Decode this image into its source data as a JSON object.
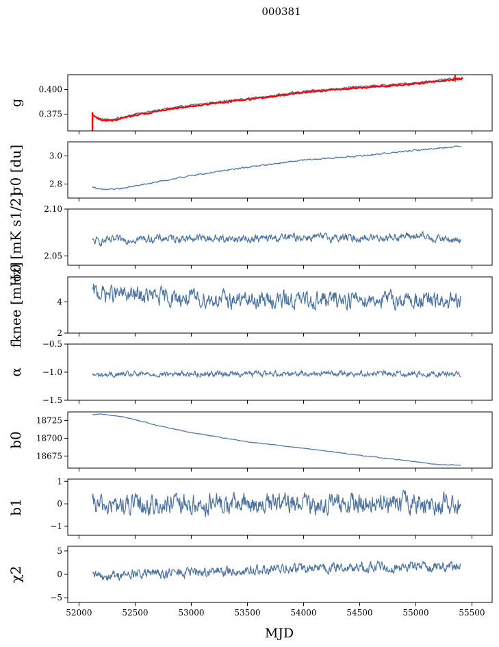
{
  "figure": {
    "title": "000381",
    "xlabel": "MJD"
  },
  "chart_data": [
    {
      "type": "line",
      "id": "g",
      "ylabel": "g",
      "xlim": [
        51900,
        55680
      ],
      "ylim": [
        0.358,
        0.415
      ],
      "yticks": [
        0.375,
        0.4
      ],
      "yticklabels": [
        "0.375",
        "0.400"
      ],
      "x_start": 52120,
      "x_end": 55420,
      "series": [
        {
          "color": "#4c72a0",
          "anchors": [
            [
              52120,
              0.374
            ],
            [
              52200,
              0.37
            ],
            [
              52300,
              0.3695
            ],
            [
              52500,
              0.375
            ],
            [
              52800,
              0.381
            ],
            [
              53200,
              0.387
            ],
            [
              53600,
              0.392
            ],
            [
              54000,
              0.398
            ],
            [
              54400,
              0.402
            ],
            [
              54800,
              0.405
            ],
            [
              55100,
              0.408
            ],
            [
              55420,
              0.412
            ]
          ],
          "noise": 0.0008
        },
        {
          "color": "#ff0000",
          "anchors": [
            [
              52120,
              0.374
            ],
            [
              52200,
              0.369
            ],
            [
              52300,
              0.3685
            ],
            [
              52500,
              0.374
            ],
            [
              52800,
              0.38
            ],
            [
              53200,
              0.386
            ],
            [
              53600,
              0.391
            ],
            [
              54000,
              0.397
            ],
            [
              54400,
              0.401
            ],
            [
              54800,
              0.404
            ],
            [
              55100,
              0.407
            ],
            [
              55420,
              0.411
            ]
          ],
          "noise": 0.0006
        }
      ]
    },
    {
      "type": "line",
      "id": "sigma0_du",
      "ylabel": "σ0 [du]",
      "xlim": [
        51900,
        55680
      ],
      "ylim": [
        2.7,
        3.1
      ],
      "yticks": [
        2.8,
        3.0
      ],
      "yticklabels": [
        "2.8",
        "3.0"
      ],
      "x_start": 52120,
      "x_end": 55400,
      "series": [
        {
          "color": "#4c72a0",
          "anchors": [
            [
              52120,
              2.78
            ],
            [
              52200,
              2.76
            ],
            [
              52350,
              2.765
            ],
            [
              52600,
              2.8
            ],
            [
              53000,
              2.86
            ],
            [
              53500,
              2.92
            ],
            [
              54000,
              2.97
            ],
            [
              54500,
              3.0
            ],
            [
              55000,
              3.04
            ],
            [
              55400,
              3.07
            ]
          ],
          "noise": 0.004
        }
      ]
    },
    {
      "type": "line",
      "id": "sigma0_mk",
      "ylabel": "σ0 [mK s1/2]",
      "xlim": [
        51900,
        55680
      ],
      "ylim": [
        2.04,
        2.1
      ],
      "yticks": [
        2.05,
        2.1
      ],
      "yticklabels": [
        "2.05",
        "2.10"
      ],
      "x_start": 52120,
      "x_end": 55400,
      "series": [
        {
          "color": "#4c72a0",
          "anchors": [
            [
              52120,
              2.065
            ],
            [
              52500,
              2.068
            ],
            [
              53000,
              2.069
            ],
            [
              53500,
              2.068
            ],
            [
              54000,
              2.07
            ],
            [
              54500,
              2.069
            ],
            [
              55000,
              2.071
            ],
            [
              55400,
              2.066
            ]
          ],
          "noise": 0.0035
        }
      ]
    },
    {
      "type": "line",
      "id": "fknee",
      "ylabel": "fknee [mHz]",
      "xlim": [
        51900,
        55680
      ],
      "ylim": [
        2,
        5.6
      ],
      "yticks": [
        2,
        4
      ],
      "yticklabels": [
        "2",
        "4"
      ],
      "x_start": 52120,
      "x_end": 55400,
      "series": [
        {
          "color": "#4c72a0",
          "anchors": [
            [
              52120,
              4.6
            ],
            [
              52500,
              4.4
            ],
            [
              53000,
              4.2
            ],
            [
              53500,
              4.1
            ],
            [
              54000,
              4.1
            ],
            [
              54500,
              4.2
            ],
            [
              55000,
              4.1
            ],
            [
              55400,
              3.9
            ]
          ],
          "noise": 0.45
        }
      ]
    },
    {
      "type": "line",
      "id": "alpha",
      "ylabel": "α",
      "xlim": [
        51900,
        55680
      ],
      "ylim": [
        -1.5,
        -0.5
      ],
      "yticks": [
        -1.5,
        -1.0,
        -0.5
      ],
      "yticklabels": [
        "−1.5",
        "−1.0",
        "−0.5"
      ],
      "x_start": 52120,
      "x_end": 55400,
      "series": [
        {
          "color": "#4c72a0",
          "anchors": [
            [
              52120,
              -1.05
            ],
            [
              53000,
              -1.03
            ],
            [
              54000,
              -1.02
            ],
            [
              55400,
              -1.03
            ]
          ],
          "noise": 0.04
        }
      ]
    },
    {
      "type": "line",
      "id": "b0",
      "ylabel": "b0",
      "xlim": [
        51900,
        55680
      ],
      "ylim": [
        18658,
        18737
      ],
      "yticks": [
        18675,
        18700,
        18725
      ],
      "yticklabels": [
        "18675",
        "18700",
        "18725"
      ],
      "x_start": 52120,
      "x_end": 55400,
      "series": [
        {
          "color": "#4c72a0",
          "anchors": [
            [
              52120,
              18733
            ],
            [
              52200,
              18734
            ],
            [
              52400,
              18730
            ],
            [
              52700,
              18718
            ],
            [
              53000,
              18708
            ],
            [
              53500,
              18695
            ],
            [
              54000,
              18686
            ],
            [
              54500,
              18676
            ],
            [
              55000,
              18667
            ],
            [
              55200,
              18663
            ],
            [
              55400,
              18662
            ]
          ],
          "noise": 0.4
        }
      ]
    },
    {
      "type": "line",
      "id": "b1",
      "ylabel": "b1",
      "xlim": [
        51900,
        55680
      ],
      "ylim": [
        -1.4,
        1.1
      ],
      "yticks": [
        -1,
        0,
        1
      ],
      "yticklabels": [
        "−1",
        "0",
        "1"
      ],
      "x_start": 52120,
      "x_end": 55400,
      "series": [
        {
          "color": "#4c72a0",
          "anchors": [
            [
              52120,
              -0.1
            ],
            [
              53000,
              -0.05
            ],
            [
              54000,
              0.0
            ],
            [
              55400,
              0.0
            ]
          ],
          "noise": 0.38
        }
      ]
    },
    {
      "type": "line",
      "id": "chi2",
      "ylabel": "χ2",
      "xlim": [
        51900,
        55680
      ],
      "ylim": [
        -6,
        6
      ],
      "yticks": [
        -5,
        0,
        5
      ],
      "yticklabels": [
        "−5",
        "0",
        "5"
      ],
      "xticks": [
        52000,
        52500,
        53000,
        53500,
        54000,
        54500,
        55000,
        55500
      ],
      "xticklabels": [
        "52000",
        "52500",
        "53000",
        "53500",
        "54000",
        "54500",
        "55000",
        "55500"
      ],
      "x_start": 52120,
      "x_end": 55400,
      "series": [
        {
          "color": "#4c72a0",
          "anchors": [
            [
              52120,
              -0.5
            ],
            [
              52500,
              0.0
            ],
            [
              53000,
              0.4
            ],
            [
              53500,
              0.8
            ],
            [
              54000,
              1.2
            ],
            [
              54500,
              1.5
            ],
            [
              55000,
              1.6
            ],
            [
              55400,
              1.8
            ]
          ],
          "noise": 0.9
        }
      ]
    }
  ]
}
